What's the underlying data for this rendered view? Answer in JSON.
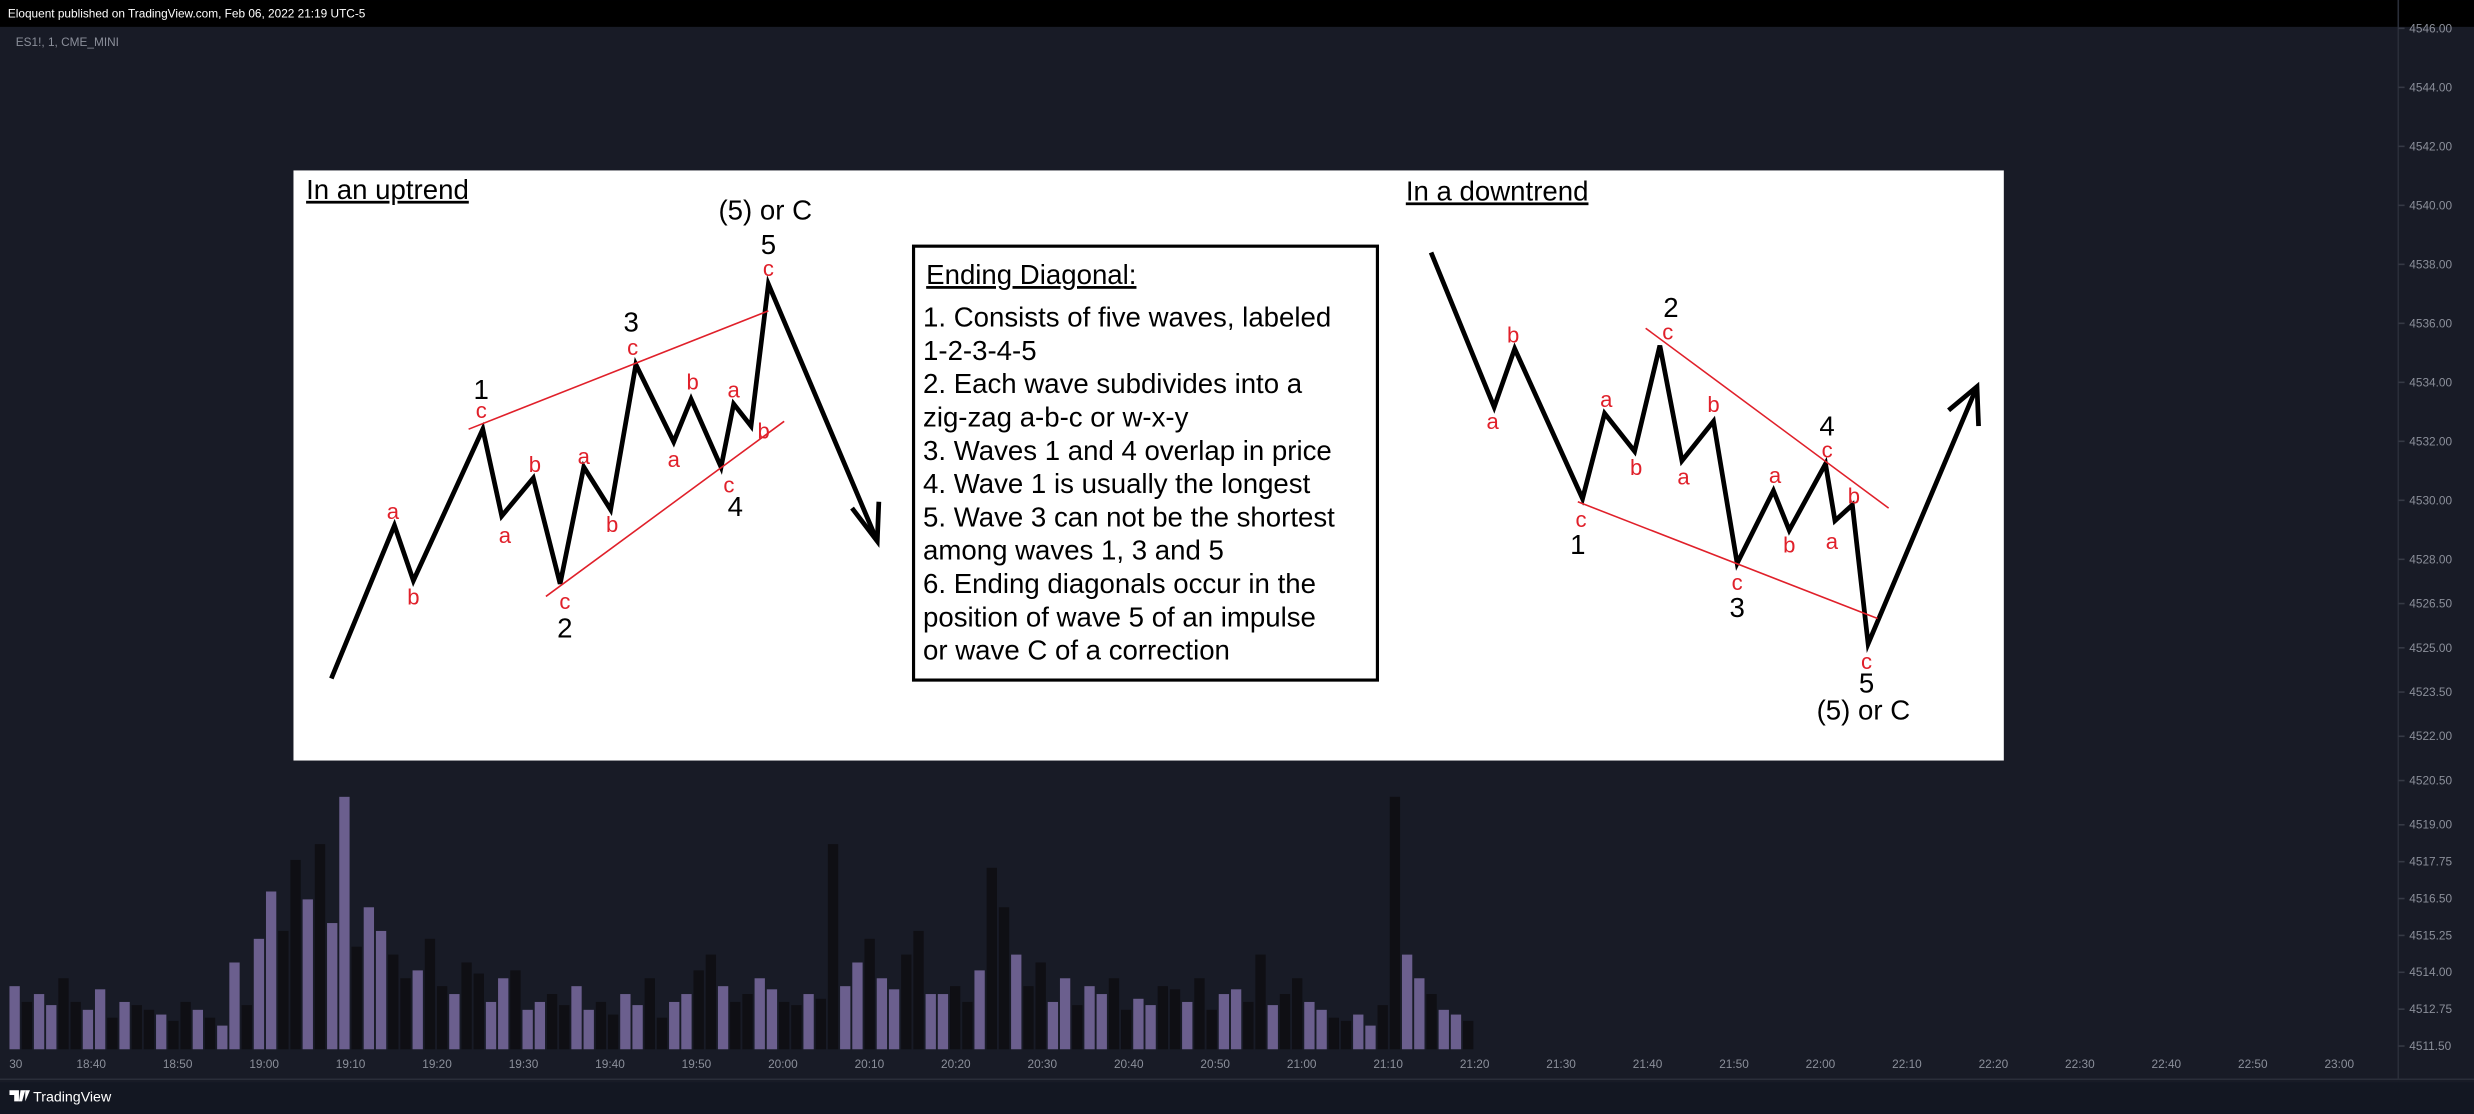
{
  "header": {
    "publisher": "Eloquent published on TradingView.com, Feb 06, 2022 21:19 UTC-5",
    "symbol": "ES1!, 1, CME_MINI"
  },
  "price_axis": {
    "ylim": [
      4511.39,
      4546.96
    ],
    "ticks": [
      {
        "value": 4546,
        "label": "4546.00"
      },
      {
        "value": 4544,
        "label": "4544.00"
      },
      {
        "value": 4542,
        "label": "4542.00"
      },
      {
        "value": 4540,
        "label": "4540.00"
      },
      {
        "value": 4538,
        "label": "4538.00"
      },
      {
        "value": 4536,
        "label": "4536.00"
      },
      {
        "value": 4534,
        "label": "4534.00"
      },
      {
        "value": 4532,
        "label": "4532.00"
      },
      {
        "value": 4530,
        "label": "4530.00"
      },
      {
        "value": 4528,
        "label": "4528.00"
      },
      {
        "value": 4526.5,
        "label": "4526.50"
      },
      {
        "value": 4525,
        "label": "4525.00"
      },
      {
        "value": 4523.5,
        "label": "4523.50"
      },
      {
        "value": 4522,
        "label": "4522.00"
      },
      {
        "value": 4520.5,
        "label": "4520.50"
      },
      {
        "value": 4519,
        "label": "4519.00"
      },
      {
        "value": 4517.75,
        "label": "4517.75"
      },
      {
        "value": 4516.5,
        "label": "4516.50"
      },
      {
        "value": 4515.25,
        "label": "4515.25"
      },
      {
        "value": 4514,
        "label": "4514.00"
      },
      {
        "value": 4512.75,
        "label": "4512.75"
      },
      {
        "value": 4511.5,
        "label": "4511.50"
      }
    ]
  },
  "time_axis": {
    "labels": [
      "30",
      "18:40",
      "18:50",
      "19:00",
      "19:10",
      "19:20",
      "19:30",
      "19:40",
      "19:50",
      "20:00",
      "20:10",
      "20:20",
      "20:30",
      "20:40",
      "20:50",
      "21:00",
      "21:10",
      "21:20",
      "21:30",
      "21:40",
      "21:50",
      "22:00",
      "22:10",
      "22:20",
      "22:30",
      "22:40",
      "22:50",
      "23:00"
    ]
  },
  "volume": {
    "up_color": "#6b5f8e",
    "down_color": "#0f0f14",
    "dir": "uduudduududdudduduuduudduduuduudduddudduuduudduudduudduuddudduuddudduuduudduudduddudduuduudduuddudduuddudduudduudduuduud",
    "values": [
      40,
      30,
      35,
      28,
      45,
      30,
      25,
      38,
      20,
      30,
      28,
      25,
      22,
      18,
      30,
      25,
      20,
      15,
      55,
      28,
      70,
      100,
      75,
      120,
      95,
      130,
      80,
      160,
      65,
      90,
      75,
      60,
      45,
      50,
      70,
      40,
      35,
      55,
      48,
      30,
      45,
      50,
      25,
      30,
      35,
      28,
      40,
      25,
      30,
      22,
      35,
      28,
      45,
      20,
      30,
      35,
      50,
      60,
      40,
      30,
      35,
      45,
      38,
      30,
      28,
      35,
      32,
      130,
      40,
      55,
      70,
      45,
      38,
      60,
      75,
      35,
      35,
      40,
      30,
      50,
      115,
      90,
      60,
      40,
      55,
      30,
      45,
      28,
      40,
      35,
      45,
      25,
      32,
      28,
      40,
      38,
      30,
      45,
      25,
      35,
      38,
      30,
      60,
      28,
      35,
      45,
      30,
      25,
      20,
      18,
      22,
      15,
      28,
      160,
      60,
      45,
      35,
      25,
      22,
      18
    ]
  },
  "diagram": {
    "uptrend": {
      "title": "In an uptrend",
      "labels": [
        "a",
        "b",
        "c",
        "a",
        "b",
        "c",
        "a",
        "b",
        "c",
        "a",
        "b",
        "a",
        "c",
        "b",
        "c",
        "1",
        "2",
        "3",
        "4",
        "5",
        "(5) or C"
      ]
    },
    "box": {
      "title": "Ending Diagonal:",
      "lines": [
        "1. Consists of five waves, labeled",
        "1-2-3-4-5",
        "2. Each wave subdivides into a",
        "zig-zag a-b-c or w-x-y",
        "3. Waves 1 and 4 overlap in price",
        "4. Wave 1 is usually the longest",
        "5. Wave 3 can not be the shortest",
        "among waves 1, 3 and 5",
        "6. Ending diagonals occur in the",
        "position of wave 5 of an impulse",
        "or wave C of a correction"
      ]
    },
    "downtrend": {
      "title": "In a downtrend",
      "labels": [
        "a",
        "b",
        "c",
        "a",
        "b",
        "c",
        "a",
        "b",
        "c",
        "a",
        "b",
        "c",
        "a",
        "b",
        "c",
        "1",
        "2",
        "3",
        "4",
        "5",
        "(5) or C"
      ]
    }
  },
  "footer": {
    "brand": "TradingView"
  }
}
